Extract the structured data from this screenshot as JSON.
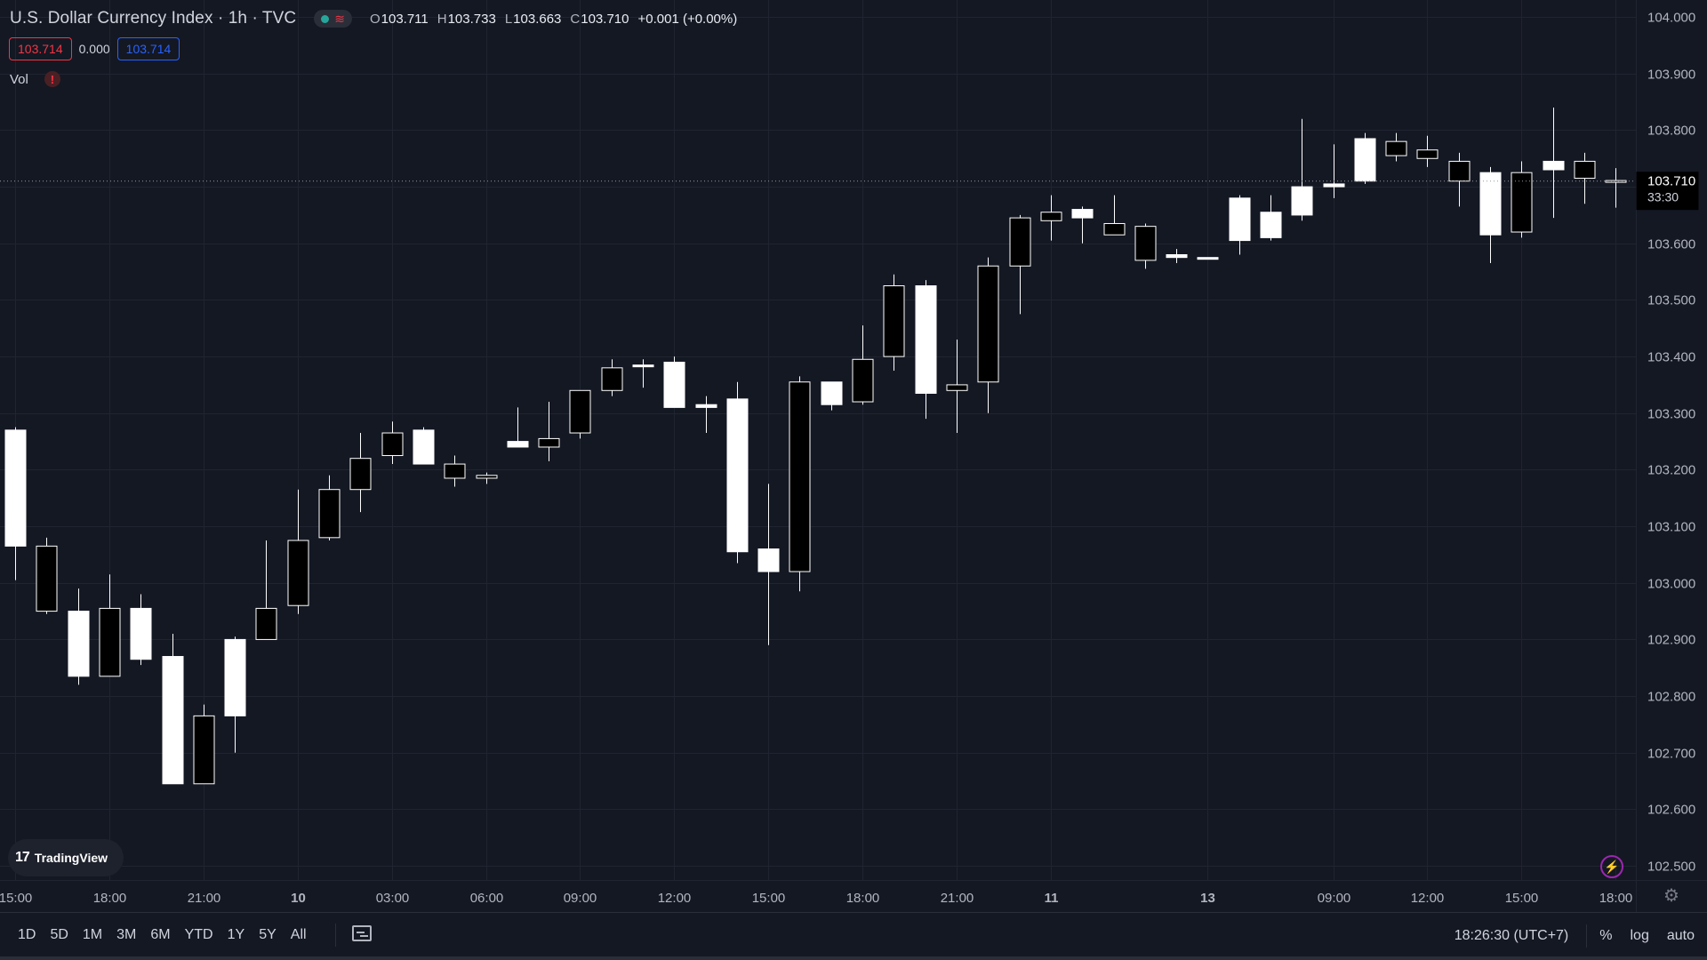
{
  "legend": {
    "title": "U.S. Dollar Currency Index · 1h · TVC",
    "status_wave": "≋",
    "ohlc": [
      {
        "key": "O",
        "value": "103.711"
      },
      {
        "key": "H",
        "value": "103.733"
      },
      {
        "key": "L",
        "value": "103.663"
      },
      {
        "key": "C",
        "value": "103.710"
      }
    ],
    "change": "+0.001 (+0.00%)",
    "bid": "103.714",
    "spread": "0.000",
    "ask": "103.714",
    "volume_label": "Vol",
    "warning_symbol": "!"
  },
  "branding": {
    "logo_mark": "17",
    "logo_text": "TradingView"
  },
  "price_scale": {
    "last_price": "103.710",
    "countdown": "33:30"
  },
  "bottom_toolbar": {
    "ranges": [
      "1D",
      "5D",
      "1M",
      "3M",
      "6M",
      "YTD",
      "1Y",
      "5Y",
      "All"
    ],
    "clock": "18:26:30 (UTC+7)",
    "percent_label": "%",
    "log_label": "log",
    "auto_label": "auto"
  },
  "icons": {
    "flash": "⚡",
    "gear": "⚙"
  },
  "colors": {
    "background": "#141823",
    "grid": "#1f2430",
    "candle_up_fill": "#ffffff",
    "candle_down_fill": "#000000",
    "candle_border": "#ffffff",
    "bid": "#f23645",
    "ask": "#2962ff"
  },
  "chart_data": {
    "type": "candlestick",
    "y_axis": {
      "ticks": [
        "104.000",
        "103.900",
        "103.800",
        "103.700",
        "103.600",
        "103.500",
        "103.400",
        "103.300",
        "103.200",
        "103.100",
        "103.000",
        "102.900",
        "102.800",
        "102.700",
        "102.600",
        "102.500"
      ],
      "range": [
        102.475,
        104.03
      ]
    },
    "x_axis": {
      "ticks": [
        {
          "label": "15:00",
          "index": 0,
          "bold": false
        },
        {
          "label": "18:00",
          "index": 3,
          "bold": false
        },
        {
          "label": "21:00",
          "index": 6,
          "bold": false
        },
        {
          "label": "10",
          "index": 9,
          "bold": true
        },
        {
          "label": "03:00",
          "index": 12,
          "bold": false
        },
        {
          "label": "06:00",
          "index": 15,
          "bold": false
        },
        {
          "label": "09:00",
          "index": 18,
          "bold": false
        },
        {
          "label": "12:00",
          "index": 21,
          "bold": false
        },
        {
          "label": "15:00",
          "index": 24,
          "bold": false
        },
        {
          "label": "18:00",
          "index": 27,
          "bold": false
        },
        {
          "label": "21:00",
          "index": 30,
          "bold": false
        },
        {
          "label": "11",
          "index": 33,
          "bold": true
        },
        {
          "label": "13",
          "index": 38,
          "bold": true
        },
        {
          "label": "09:00",
          "index": 42,
          "bold": false
        },
        {
          "label": "12:00",
          "index": 45,
          "bold": false
        },
        {
          "label": "15:00",
          "index": 48,
          "bold": false
        },
        {
          "label": "18:00",
          "index": 51,
          "bold": false
        }
      ]
    },
    "candles": [
      {
        "o": 103.065,
        "h": 103.275,
        "l": 103.005,
        "c": 103.27
      },
      {
        "o": 103.065,
        "h": 103.08,
        "l": 102.945,
        "c": 102.95
      },
      {
        "o": 102.835,
        "h": 102.99,
        "l": 102.82,
        "c": 102.95
      },
      {
        "o": 102.955,
        "h": 103.015,
        "l": 102.835,
        "c": 102.835
      },
      {
        "o": 102.865,
        "h": 102.98,
        "l": 102.855,
        "c": 102.955
      },
      {
        "o": 102.645,
        "h": 102.91,
        "l": 102.645,
        "c": 102.87
      },
      {
        "o": 102.765,
        "h": 102.785,
        "l": 102.645,
        "c": 102.645
      },
      {
        "o": 102.765,
        "h": 102.905,
        "l": 102.7,
        "c": 102.9
      },
      {
        "o": 102.955,
        "h": 103.075,
        "l": 102.9,
        "c": 102.9
      },
      {
        "o": 103.075,
        "h": 103.165,
        "l": 102.945,
        "c": 102.96
      },
      {
        "o": 103.165,
        "h": 103.19,
        "l": 103.075,
        "c": 103.08
      },
      {
        "o": 103.22,
        "h": 103.265,
        "l": 103.125,
        "c": 103.165
      },
      {
        "o": 103.265,
        "h": 103.285,
        "l": 103.21,
        "c": 103.225
      },
      {
        "o": 103.21,
        "h": 103.275,
        "l": 103.21,
        "c": 103.27
      },
      {
        "o": 103.21,
        "h": 103.225,
        "l": 103.17,
        "c": 103.185
      },
      {
        "o": 103.19,
        "h": 103.195,
        "l": 103.175,
        "c": 103.185
      },
      {
        "o": 103.24,
        "h": 103.31,
        "l": 103.24,
        "c": 103.25
      },
      {
        "o": 103.255,
        "h": 103.32,
        "l": 103.215,
        "c": 103.24
      },
      {
        "o": 103.34,
        "h": 103.34,
        "l": 103.255,
        "c": 103.265
      },
      {
        "o": 103.38,
        "h": 103.395,
        "l": 103.33,
        "c": 103.34
      },
      {
        "o": 103.385,
        "h": 103.395,
        "l": 103.345,
        "c": 103.385
      },
      {
        "o": 103.31,
        "h": 103.4,
        "l": 103.31,
        "c": 103.39
      },
      {
        "o": 103.31,
        "h": 103.33,
        "l": 103.265,
        "c": 103.315
      },
      {
        "o": 103.055,
        "h": 103.355,
        "l": 103.035,
        "c": 103.325
      },
      {
        "o": 103.02,
        "h": 103.175,
        "l": 102.89,
        "c": 103.06
      },
      {
        "o": 103.355,
        "h": 103.365,
        "l": 102.985,
        "c": 103.02
      },
      {
        "o": 103.315,
        "h": 103.355,
        "l": 103.305,
        "c": 103.355
      },
      {
        "o": 103.395,
        "h": 103.455,
        "l": 103.315,
        "c": 103.32
      },
      {
        "o": 103.525,
        "h": 103.545,
        "l": 103.375,
        "c": 103.4
      },
      {
        "o": 103.335,
        "h": 103.535,
        "l": 103.29,
        "c": 103.525
      },
      {
        "o": 103.35,
        "h": 103.43,
        "l": 103.265,
        "c": 103.34
      },
      {
        "o": 103.56,
        "h": 103.575,
        "l": 103.3,
        "c": 103.355
      },
      {
        "o": 103.645,
        "h": 103.65,
        "l": 103.475,
        "c": 103.56
      },
      {
        "o": 103.655,
        "h": 103.685,
        "l": 103.605,
        "c": 103.64
      },
      {
        "o": 103.645,
        "h": 103.665,
        "l": 103.6,
        "c": 103.66
      },
      {
        "o": 103.635,
        "h": 103.685,
        "l": 103.615,
        "c": 103.615
      },
      {
        "o": 103.63,
        "h": 103.635,
        "l": 103.555,
        "c": 103.57
      },
      {
        "o": 103.575,
        "h": 103.59,
        "l": 103.565,
        "c": 103.58
      },
      {
        "o": 103.575,
        "h": 103.575,
        "l": 103.575,
        "c": 103.575
      },
      {
        "o": 103.605,
        "h": 103.685,
        "l": 103.58,
        "c": 103.68
      },
      {
        "o": 103.61,
        "h": 103.685,
        "l": 103.605,
        "c": 103.655
      },
      {
        "o": 103.65,
        "h": 103.82,
        "l": 103.64,
        "c": 103.7
      },
      {
        "o": 103.7,
        "h": 103.775,
        "l": 103.68,
        "c": 103.705
      },
      {
        "o": 103.71,
        "h": 103.795,
        "l": 103.705,
        "c": 103.785
      },
      {
        "o": 103.78,
        "h": 103.795,
        "l": 103.745,
        "c": 103.755
      },
      {
        "o": 103.765,
        "h": 103.79,
        "l": 103.735,
        "c": 103.75
      },
      {
        "o": 103.745,
        "h": 103.76,
        "l": 103.665,
        "c": 103.71
      },
      {
        "o": 103.615,
        "h": 103.735,
        "l": 103.565,
        "c": 103.725
      },
      {
        "o": 103.725,
        "h": 103.745,
        "l": 103.61,
        "c": 103.62
      },
      {
        "o": 103.73,
        "h": 103.84,
        "l": 103.645,
        "c": 103.745
      },
      {
        "o": 103.745,
        "h": 103.76,
        "l": 103.67,
        "c": 103.715
      },
      {
        "o": 103.711,
        "h": 103.733,
        "l": 103.663,
        "c": 103.71
      }
    ]
  }
}
